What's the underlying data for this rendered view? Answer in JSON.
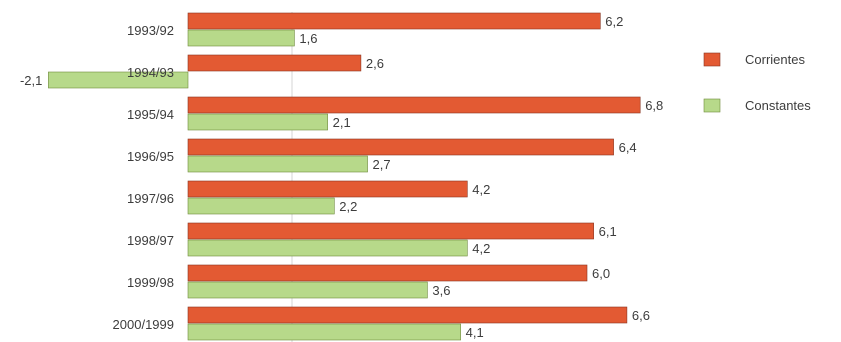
{
  "chart_data": {
    "type": "bar",
    "orientation": "horizontal",
    "categories": [
      "1993/92",
      "1994/93",
      "1995/94",
      "1996/95",
      "1997/96",
      "1998/97",
      "1999/98",
      "2000/1999"
    ],
    "series": [
      {
        "name": "Corrientes",
        "color": "#e35a33",
        "values": [
          6.2,
          2.6,
          6.8,
          6.4,
          4.2,
          6.1,
          6.0,
          6.6
        ],
        "labels": [
          "6,2",
          "2,6",
          "6,8",
          "6,4",
          "4,2",
          "6,1",
          "6,0",
          "6,6"
        ]
      },
      {
        "name": "Constantes",
        "color": "#b7d98a",
        "values": [
          1.6,
          -2.1,
          2.1,
          2.7,
          2.2,
          4.2,
          3.6,
          4.1
        ],
        "labels": [
          "1,6",
          "-2,1",
          "2,1",
          "2,7",
          "2,2",
          "4,2",
          "3,6",
          "4,1"
        ]
      }
    ],
    "xlim": [
      -2.1,
      6.8
    ],
    "grid": false,
    "legend_position": "right"
  }
}
